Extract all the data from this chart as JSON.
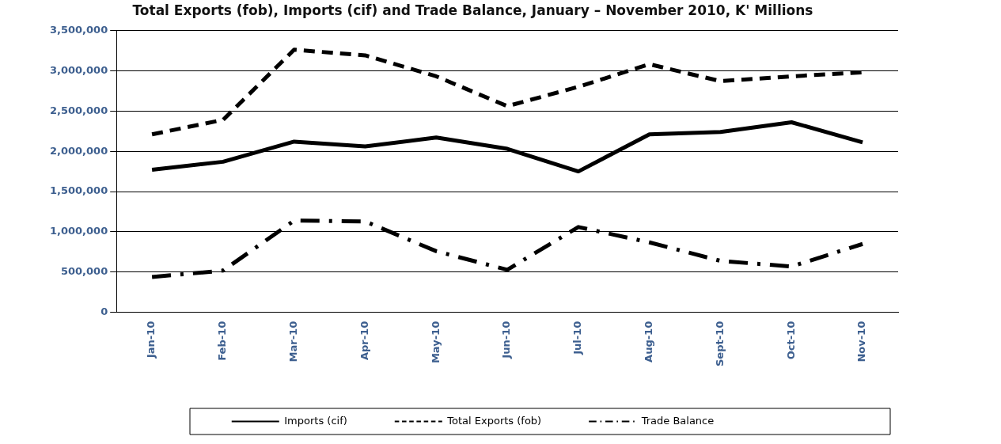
{
  "chart_data": {
    "type": "line",
    "title": "Total Exports (fob), Imports (cif) and Trade Balance, January – November 2010, K' Millions",
    "categories": [
      "Jan-10",
      "Feb-10",
      "Mar-10",
      "Apr-10",
      "May-10",
      "Jun-10",
      "Jul-10",
      "Aug-10",
      "Sept-10",
      "Oct-10",
      "Nov-10"
    ],
    "series": [
      {
        "name": "Imports (cif)",
        "color": "#000000",
        "line_style": "solid",
        "values": [
          1770000,
          1870000,
          2120000,
          2060000,
          2170000,
          2030000,
          1750000,
          2210000,
          2240000,
          2360000,
          2110000
        ]
      },
      {
        "name": "Total Exports (fob)",
        "color": "#000000",
        "line_style": "dashed",
        "values": [
          2210000,
          2390000,
          3260000,
          3190000,
          2930000,
          2560000,
          2800000,
          3080000,
          2870000,
          2930000,
          2980000
        ]
      },
      {
        "name": "Trade Balance",
        "color": "#000000",
        "line_style": "dashdot",
        "values": [
          440000,
          520000,
          1140000,
          1130000,
          760000,
          530000,
          1060000,
          870000,
          640000,
          570000,
          850000
        ]
      }
    ],
    "ylim": [
      0,
      3500000
    ],
    "yticks": [
      0,
      {
        "value": 500000,
        "label": "500,000"
      },
      {
        "value": 1000000,
        "label": "1,000,000"
      },
      {
        "value": 1500000,
        "label": "1,500,000"
      },
      {
        "value": 2000000,
        "label": "2,000,000"
      },
      {
        "value": 2500000,
        "label": "2,500,000"
      },
      {
        "value": 3000000,
        "label": "3,000,000"
      },
      {
        "value": 3500000,
        "label": "3,500,000"
      }
    ],
    "grid": "y",
    "legend": "bottom",
    "marker": "none"
  }
}
